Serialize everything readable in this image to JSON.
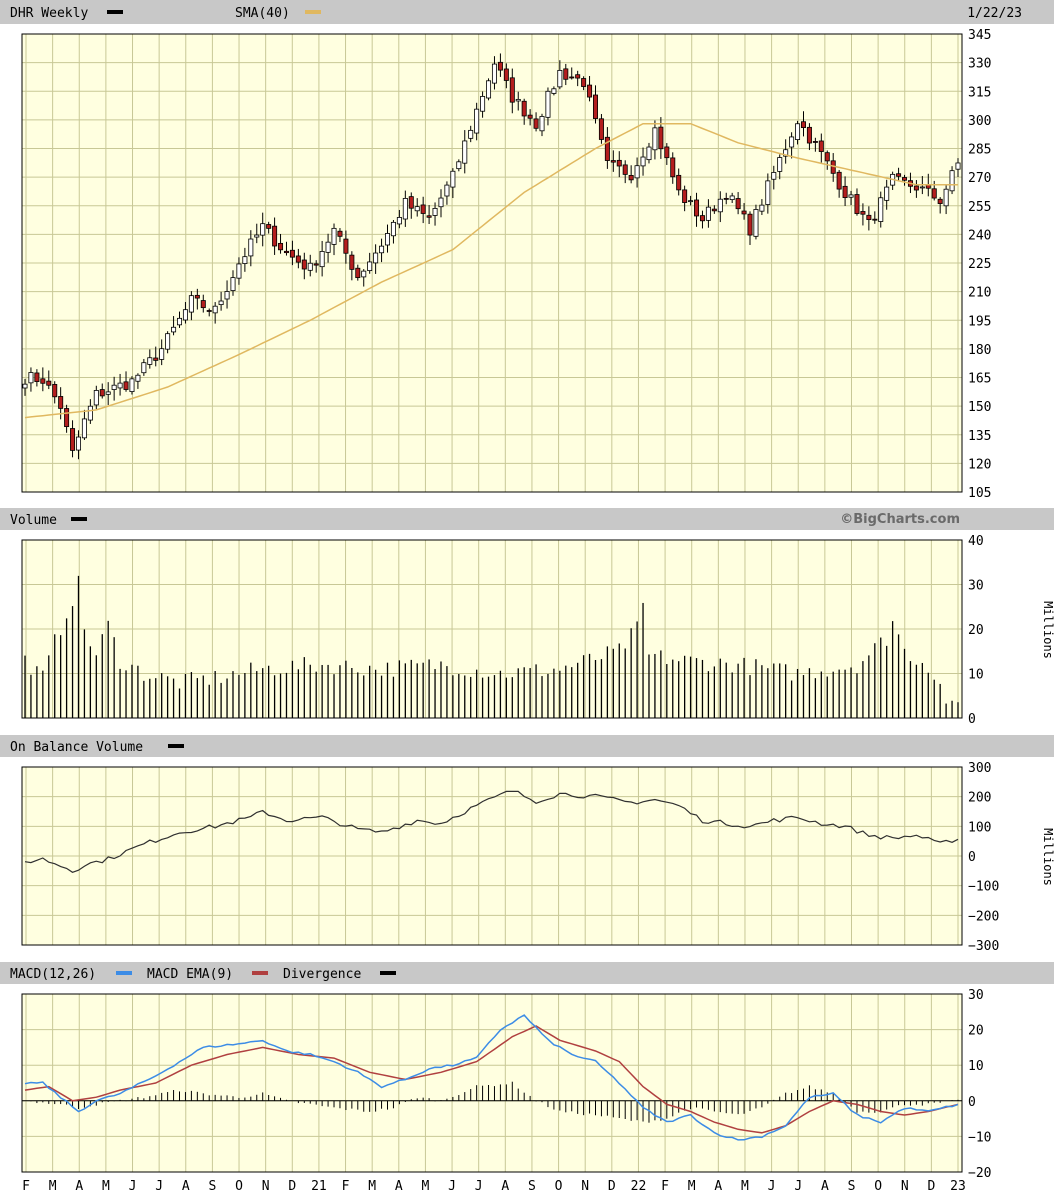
{
  "colors": {
    "background": "#ffffe0",
    "grid": "#c8c896",
    "header_bg": "#c8c8c8",
    "up_candle": "#ffffff",
    "down_candle": "#b41e1e",
    "sma": "#e0b860",
    "volume": "#000000",
    "obv": "#303030",
    "macd": "#3c8ce6",
    "macd_ema": "#b04040",
    "divergence": "#000000"
  },
  "header": {
    "ticker_label": "DHR Weekly",
    "sma_label": "SMA(40)",
    "date_label": "1/22/23",
    "watermark": "©BigCharts.com"
  },
  "x_axis": {
    "tick_labels": [
      "F",
      "M",
      "A",
      "M",
      "J",
      "J",
      "A",
      "S",
      "O",
      "N",
      "D",
      "21",
      "F",
      "M",
      "A",
      "M",
      "J",
      "J",
      "A",
      "S",
      "O",
      "N",
      "D",
      "22",
      "F",
      "M",
      "A",
      "M",
      "J",
      "J",
      "A",
      "S",
      "O",
      "N",
      "D",
      "23"
    ]
  },
  "chart_data": [
    {
      "type": "candlestick",
      "title": "DHR Weekly",
      "ylim": [
        105,
        345
      ],
      "y_ticks": [
        105,
        120,
        135,
        150,
        165,
        180,
        195,
        210,
        225,
        240,
        255,
        270,
        285,
        300,
        315,
        330,
        345
      ],
      "sma_name": "SMA(40)",
      "close_anchors": [
        [
          0,
          165
        ],
        [
          3,
          164
        ],
        [
          6,
          150
        ],
        [
          8,
          125
        ],
        [
          10,
          142
        ],
        [
          12,
          156
        ],
        [
          18,
          163
        ],
        [
          23,
          180
        ],
        [
          28,
          205
        ],
        [
          32,
          200
        ],
        [
          36,
          225
        ],
        [
          40,
          244
        ],
        [
          44,
          230
        ],
        [
          48,
          222
        ],
        [
          52,
          242
        ],
        [
          56,
          218
        ],
        [
          60,
          235
        ],
        [
          64,
          256
        ],
        [
          68,
          248
        ],
        [
          72,
          270
        ],
        [
          76,
          305
        ],
        [
          79,
          330
        ],
        [
          82,
          312
        ],
        [
          86,
          298
        ],
        [
          90,
          325
        ],
        [
          94,
          320
        ],
        [
          98,
          276
        ],
        [
          102,
          272
        ],
        [
          106,
          295
        ],
        [
          110,
          262
        ],
        [
          114,
          248
        ],
        [
          118,
          262
        ],
        [
          122,
          243
        ],
        [
          126,
          272
        ],
        [
          130,
          300
        ],
        [
          134,
          282
        ],
        [
          138,
          262
        ],
        [
          142,
          245
        ],
        [
          146,
          268
        ],
        [
          150,
          265
        ],
        [
          154,
          258
        ],
        [
          157,
          277
        ]
      ],
      "sma_anchors": [
        [
          0,
          144
        ],
        [
          12,
          148
        ],
        [
          24,
          160
        ],
        [
          36,
          177
        ],
        [
          48,
          195
        ],
        [
          60,
          215
        ],
        [
          72,
          232
        ],
        [
          84,
          262
        ],
        [
          96,
          285
        ],
        [
          104,
          298
        ],
        [
          112,
          298
        ],
        [
          120,
          288
        ],
        [
          130,
          280
        ],
        [
          140,
          273
        ],
        [
          150,
          266
        ],
        [
          157,
          266
        ]
      ]
    },
    {
      "type": "bar",
      "title": "Volume",
      "ylabel": "Millions",
      "ylim": [
        0,
        40
      ],
      "y_ticks": [
        0,
        10,
        20,
        30,
        40
      ],
      "anchors": [
        [
          0,
          13
        ],
        [
          3,
          9
        ],
        [
          5,
          17
        ],
        [
          8,
          27
        ],
        [
          9,
          30
        ],
        [
          10,
          20
        ],
        [
          12,
          14
        ],
        [
          14,
          21
        ],
        [
          16,
          13
        ],
        [
          20,
          10
        ],
        [
          26,
          8
        ],
        [
          32,
          9
        ],
        [
          40,
          11
        ],
        [
          50,
          12
        ],
        [
          60,
          11
        ],
        [
          70,
          12
        ],
        [
          80,
          10
        ],
        [
          90,
          11
        ],
        [
          100,
          15
        ],
        [
          103,
          20
        ],
        [
          104,
          25
        ],
        [
          105,
          14
        ],
        [
          110,
          13
        ],
        [
          120,
          12
        ],
        [
          130,
          10
        ],
        [
          140,
          12
        ],
        [
          145,
          18
        ],
        [
          146,
          22
        ],
        [
          148,
          15
        ],
        [
          152,
          12
        ],
        [
          156,
          2
        ]
      ]
    },
    {
      "type": "line",
      "title": "On Balance Volume",
      "ylabel": "Millions",
      "ylim": [
        -300,
        300
      ],
      "y_ticks": [
        -300,
        -200,
        -100,
        0,
        100,
        200,
        300
      ],
      "anchors": [
        [
          0,
          -20
        ],
        [
          3,
          -10
        ],
        [
          7,
          -40
        ],
        [
          8,
          -50
        ],
        [
          10,
          -30
        ],
        [
          14,
          -10
        ],
        [
          20,
          40
        ],
        [
          26,
          80
        ],
        [
          32,
          100
        ],
        [
          38,
          130
        ],
        [
          40,
          150
        ],
        [
          44,
          120
        ],
        [
          50,
          130
        ],
        [
          56,
          90
        ],
        [
          60,
          80
        ],
        [
          66,
          120
        ],
        [
          70,
          110
        ],
        [
          76,
          170
        ],
        [
          80,
          205
        ],
        [
          82,
          220
        ],
        [
          86,
          185
        ],
        [
          90,
          210
        ],
        [
          96,
          200
        ],
        [
          102,
          180
        ],
        [
          106,
          190
        ],
        [
          110,
          170
        ],
        [
          114,
          120
        ],
        [
          118,
          110
        ],
        [
          122,
          100
        ],
        [
          126,
          120
        ],
        [
          130,
          130
        ],
        [
          134,
          110
        ],
        [
          138,
          100
        ],
        [
          142,
          70
        ],
        [
          146,
          60
        ],
        [
          150,
          70
        ],
        [
          154,
          40
        ],
        [
          157,
          60
        ]
      ]
    },
    {
      "type": "line",
      "title": "MACD(12,26)",
      "ylim": [
        -20,
        30
      ],
      "y_ticks": [
        -20,
        -10,
        0,
        10,
        20,
        30
      ],
      "series": [
        {
          "name": "MACD(12,26)",
          "anchors": [
            [
              0,
              5
            ],
            [
              3,
              5
            ],
            [
              6,
              1
            ],
            [
              9,
              -3
            ],
            [
              12,
              0
            ],
            [
              16,
              2
            ],
            [
              22,
              7
            ],
            [
              26,
              11
            ],
            [
              30,
              15
            ],
            [
              36,
              16
            ],
            [
              40,
              17
            ],
            [
              44,
              14
            ],
            [
              48,
              13
            ],
            [
              52,
              11
            ],
            [
              56,
              8
            ],
            [
              60,
              4
            ],
            [
              64,
              6
            ],
            [
              68,
              9
            ],
            [
              72,
              10
            ],
            [
              76,
              12
            ],
            [
              80,
              20
            ],
            [
              84,
              24
            ],
            [
              88,
              17
            ],
            [
              92,
              13
            ],
            [
              96,
              11
            ],
            [
              100,
              5
            ],
            [
              104,
              -2
            ],
            [
              108,
              -6
            ],
            [
              112,
              -4
            ],
            [
              116,
              -9
            ],
            [
              120,
              -11
            ],
            [
              124,
              -10
            ],
            [
              128,
              -7
            ],
            [
              132,
              1
            ],
            [
              136,
              2
            ],
            [
              140,
              -4
            ],
            [
              144,
              -6
            ],
            [
              148,
              -2
            ],
            [
              152,
              -3
            ],
            [
              157,
              -1
            ]
          ]
        },
        {
          "name": "MACD EMA(9)",
          "anchors": [
            [
              0,
              3
            ],
            [
              4,
              4
            ],
            [
              8,
              0
            ],
            [
              12,
              1
            ],
            [
              16,
              3
            ],
            [
              22,
              5
            ],
            [
              28,
              10
            ],
            [
              34,
              13
            ],
            [
              40,
              15
            ],
            [
              46,
              13
            ],
            [
              52,
              12
            ],
            [
              58,
              8
            ],
            [
              64,
              6
            ],
            [
              70,
              8
            ],
            [
              76,
              11
            ],
            [
              82,
              18
            ],
            [
              86,
              21
            ],
            [
              90,
              17
            ],
            [
              96,
              14
            ],
            [
              100,
              11
            ],
            [
              104,
              4
            ],
            [
              108,
              -1
            ],
            [
              112,
              -3
            ],
            [
              116,
              -6
            ],
            [
              120,
              -8
            ],
            [
              124,
              -9
            ],
            [
              128,
              -7
            ],
            [
              132,
              -3
            ],
            [
              136,
              0
            ],
            [
              140,
              -1
            ],
            [
              144,
              -3
            ],
            [
              148,
              -4
            ],
            [
              152,
              -3
            ],
            [
              157,
              -1
            ]
          ]
        },
        {
          "name": "Divergence",
          "anchors": [
            [
              0,
              0
            ],
            [
              6,
              -1
            ],
            [
              9,
              -2
            ],
            [
              12,
              -1
            ],
            [
              16,
              0
            ],
            [
              20,
              1
            ],
            [
              26,
              3
            ],
            [
              30,
              2
            ],
            [
              36,
              1
            ],
            [
              40,
              2
            ],
            [
              44,
              0
            ],
            [
              52,
              -2
            ],
            [
              58,
              -3
            ],
            [
              62,
              -2
            ],
            [
              66,
              1
            ],
            [
              70,
              0
            ],
            [
              76,
              4
            ],
            [
              82,
              5
            ],
            [
              86,
              0
            ],
            [
              90,
              -3
            ],
            [
              96,
              -4
            ],
            [
              100,
              -5
            ],
            [
              104,
              -6
            ],
            [
              108,
              -5
            ],
            [
              112,
              -2
            ],
            [
              116,
              -3
            ],
            [
              120,
              -4
            ],
            [
              124,
              -2
            ],
            [
              128,
              2
            ],
            [
              132,
              4
            ],
            [
              136,
              2
            ],
            [
              140,
              -3
            ],
            [
              144,
              -3
            ],
            [
              148,
              -1
            ],
            [
              152,
              -1
            ],
            [
              157,
              0
            ]
          ]
        }
      ]
    }
  ]
}
